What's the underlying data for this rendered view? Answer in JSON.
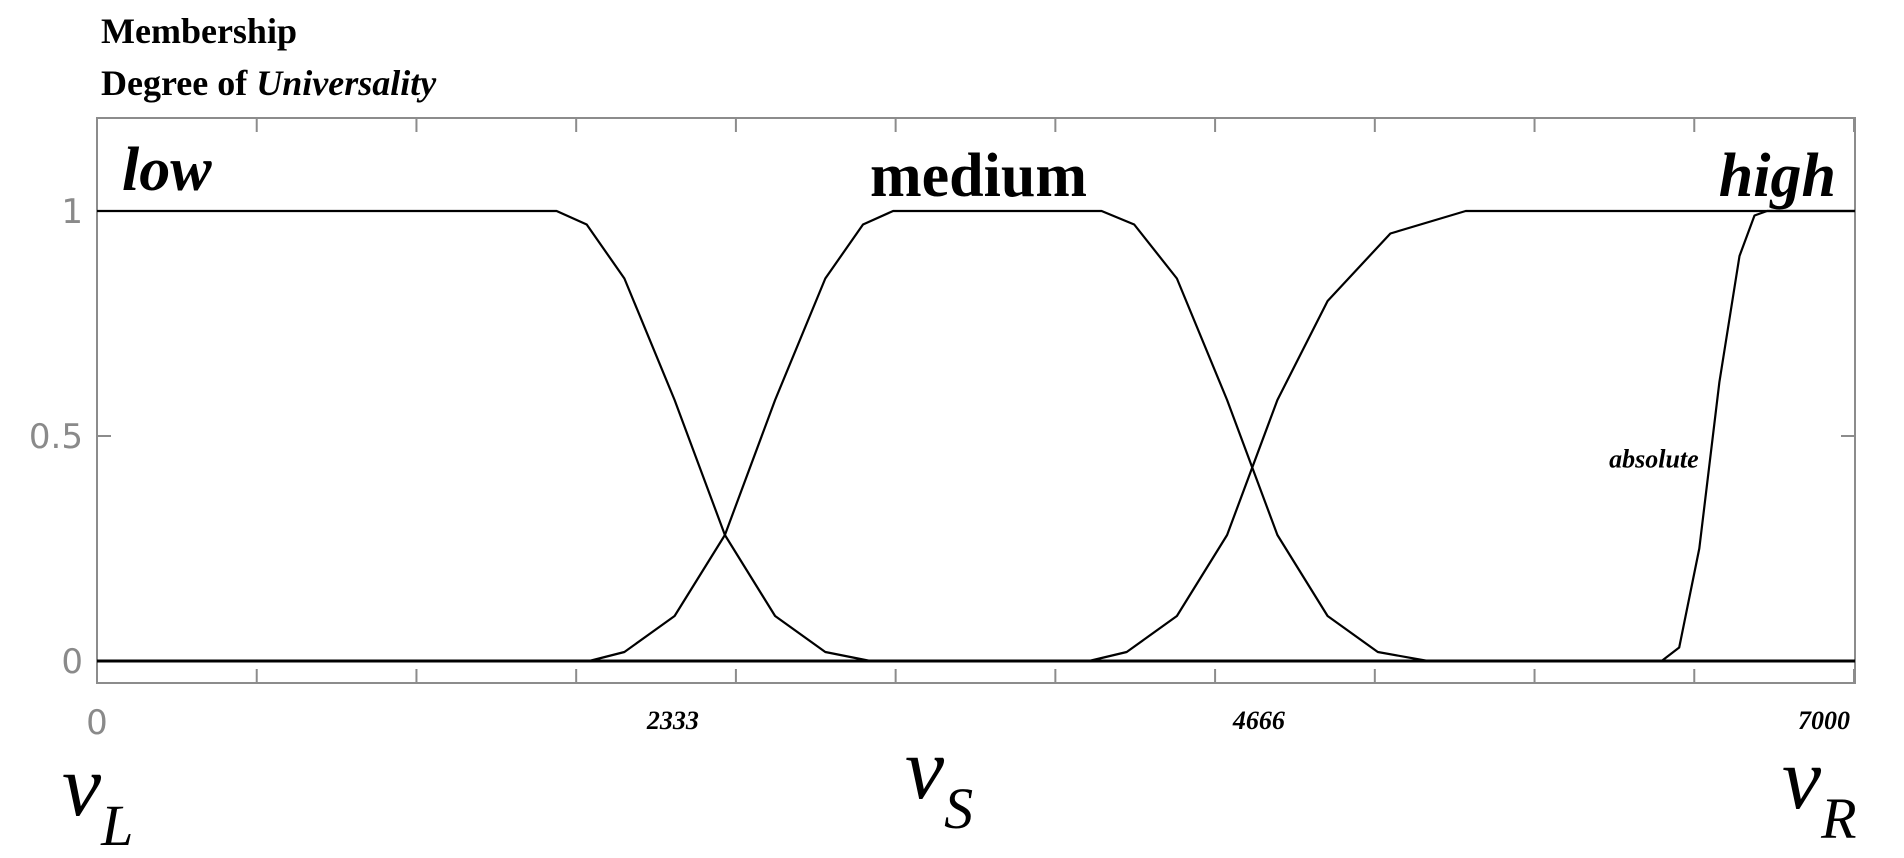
{
  "chart_data": {
    "type": "line",
    "title_line1": "Membership",
    "title_line2_prefix": "Degree of ",
    "title_line2_italic": "Universality",
    "xlim": [
      0,
      7000
    ],
    "ylim": [
      0,
      1.2
    ],
    "yticks": [
      {
        "value": 0,
        "label": "0"
      },
      {
        "value": 0.5,
        "label": "0.5"
      },
      {
        "value": 1,
        "label": "1"
      }
    ],
    "xtick_labels": [
      {
        "value": 0,
        "label": "0"
      },
      {
        "value": 2333,
        "label": "2333"
      },
      {
        "value": 4666,
        "label": "4666"
      },
      {
        "value": 7000,
        "label": "7000"
      }
    ],
    "minor_tick_step": 636,
    "set_labels": {
      "low": "low",
      "medium": "medium",
      "high": "high"
    },
    "annotation": {
      "text": "absolute",
      "x": 6240,
      "y": 0.45
    },
    "v_labels": [
      {
        "symbol": "v",
        "sub": "L",
        "x": 0
      },
      {
        "symbol": "v",
        "sub": "S",
        "x": 3500
      },
      {
        "symbol": "v",
        "sub": "R",
        "x": 7000
      }
    ],
    "series": [
      {
        "key": "low",
        "values": [
          [
            0,
            1
          ],
          [
            1830,
            1
          ],
          [
            1950,
            0.97
          ],
          [
            2100,
            0.85
          ],
          [
            2300,
            0.58
          ],
          [
            2500,
            0.28
          ],
          [
            2700,
            0.1
          ],
          [
            2900,
            0.02
          ],
          [
            3080,
            0
          ],
          [
            7000,
            0
          ]
        ]
      },
      {
        "key": "medium",
        "values": [
          [
            0,
            0
          ],
          [
            1960,
            0
          ],
          [
            2100,
            0.02
          ],
          [
            2300,
            0.1
          ],
          [
            2500,
            0.28
          ],
          [
            2700,
            0.58
          ],
          [
            2900,
            0.85
          ],
          [
            3050,
            0.97
          ],
          [
            3170,
            1
          ],
          [
            4000,
            1
          ],
          [
            4130,
            0.97
          ],
          [
            4300,
            0.85
          ],
          [
            4500,
            0.58
          ],
          [
            4700,
            0.28
          ],
          [
            4900,
            0.1
          ],
          [
            5100,
            0.02
          ],
          [
            5300,
            0
          ],
          [
            7000,
            0
          ]
        ]
      },
      {
        "key": "high_gradual",
        "values": [
          [
            0,
            0
          ],
          [
            3950,
            0
          ],
          [
            4100,
            0.02
          ],
          [
            4300,
            0.1
          ],
          [
            4500,
            0.28
          ],
          [
            4700,
            0.58
          ],
          [
            4900,
            0.8
          ],
          [
            5150,
            0.95
          ],
          [
            5450,
            1
          ],
          [
            7000,
            1
          ]
        ]
      },
      {
        "key": "absolute",
        "values": [
          [
            0,
            0
          ],
          [
            6230,
            0
          ],
          [
            6300,
            0.03
          ],
          [
            6380,
            0.25
          ],
          [
            6460,
            0.62
          ],
          [
            6540,
            0.9
          ],
          [
            6600,
            0.99
          ],
          [
            6650,
            1
          ],
          [
            7000,
            1
          ]
        ]
      }
    ]
  }
}
